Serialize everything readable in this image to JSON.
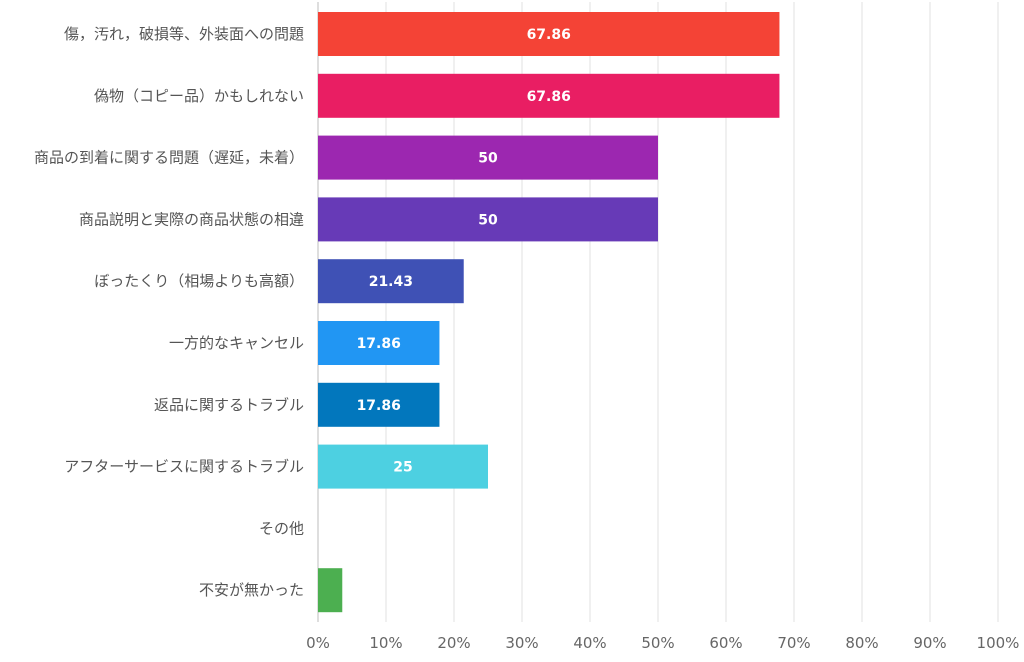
{
  "chart_data": {
    "type": "bar",
    "orientation": "horizontal",
    "categories": [
      "傷，汚れ，破損等、外装面への問題",
      "偽物（コピー品）かもしれない",
      "商品の到着に関する問題（遅延，未着）",
      "商品説明と実際の商品状態の相違",
      "ぼったくり（相場よりも高額）",
      "一方的なキャンセル",
      "返品に関するトラブル",
      "アフターサービスに関するトラブル",
      "その他",
      "不安が無かった"
    ],
    "values": [
      67.86,
      67.86,
      50,
      50,
      21.43,
      17.86,
      17.86,
      25,
      0,
      3.57
    ],
    "data_labels": [
      "67.86",
      "67.86",
      "50",
      "50",
      "21.43",
      "17.86",
      "17.86",
      "25",
      "",
      ""
    ],
    "colors": [
      "#f44336",
      "#e91e63",
      "#9c27b0",
      "#673ab7",
      "#3f51b5",
      "#2196f3",
      "#0277bd",
      "#4dd0e1",
      "#26a69a",
      "#4caf50"
    ],
    "xlim": [
      0,
      100
    ],
    "x_ticks": [
      0,
      10,
      20,
      30,
      40,
      50,
      60,
      70,
      80,
      90,
      100
    ],
    "x_tick_labels": [
      "0%",
      "10%",
      "20%",
      "30%",
      "40%",
      "50%",
      "60%",
      "70%",
      "80%",
      "90%",
      "100%"
    ],
    "grid": true,
    "legend": "none",
    "title": "",
    "xlabel": "",
    "ylabel": ""
  }
}
